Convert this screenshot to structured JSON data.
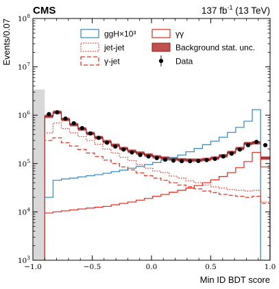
{
  "header": {
    "experiment": "CMS",
    "lumi_value": "137 fb",
    "lumi_exponent": "-1",
    "lumi_energy": " (13 TeV)"
  },
  "chart_data": {
    "type": "histogram",
    "xlabel": "Min ID BDT score",
    "ylabel": "Events/0.07",
    "xlim": [
      -1.0,
      1.0
    ],
    "ylim": [
      1000,
      100000000
    ],
    "yscale": "log",
    "grid": false,
    "legend_position": "top",
    "x_ticks": [
      {
        "value": -1.0,
        "label": "−1.0"
      },
      {
        "value": -0.5,
        "label": "−0.5"
      },
      {
        "value": 0.0,
        "label": "0.0"
      },
      {
        "value": 0.5,
        "label": "0.5"
      },
      {
        "value": 1.0,
        "label": "1.0"
      }
    ],
    "y_ticks": [
      {
        "value": 1000,
        "base": "10",
        "exp": "3"
      },
      {
        "value": 10000,
        "base": "10",
        "exp": "4"
      },
      {
        "value": 100000,
        "base": "10",
        "exp": "5"
      },
      {
        "value": 1000000,
        "base": "10",
        "exp": "6"
      },
      {
        "value": 10000000,
        "base": "10",
        "exp": "7"
      },
      {
        "value": 100000000,
        "base": "10",
        "exp": "8"
      }
    ],
    "excluded_region": {
      "x": [
        -1.0,
        -0.9
      ],
      "color": "#d8d8d8"
    },
    "bin_edges": [
      -0.9,
      -0.83,
      -0.76,
      -0.69,
      -0.62,
      -0.55,
      -0.48,
      -0.41,
      -0.34,
      -0.27,
      -0.2,
      -0.13,
      -0.06,
      0.01,
      0.08,
      0.15,
      0.22,
      0.29,
      0.36,
      0.43,
      0.5,
      0.57,
      0.64,
      0.71,
      0.78,
      0.85,
      0.92,
      1.0
    ],
    "series": [
      {
        "name": "ggH×10³",
        "style": "step",
        "color": "#3c8fbf",
        "values": [
          20000,
          45000,
          48000,
          50000,
          53000,
          56000,
          59000,
          63000,
          68000,
          73000,
          80000,
          87000,
          95000,
          105000,
          118000,
          133000,
          150000,
          175000,
          205000,
          245000,
          290000,
          350000,
          440000,
          560000,
          750000,
          1300000,
          1000
        ]
      },
      {
        "name": "jet-jet",
        "style": "dotted-step",
        "color": "#e8332a",
        "values": [
          430000,
          690000,
          530000,
          430000,
          360000,
          300000,
          250000,
          200000,
          165000,
          135000,
          115000,
          95000,
          80000,
          70000,
          65000,
          55000,
          50000,
          44000,
          40000,
          36000,
          33000,
          31000,
          29000,
          28000,
          27000,
          28000,
          16000
        ]
      },
      {
        "name": "γ-jet",
        "style": "dashed-step",
        "color": "#e8332a",
        "values": [
          300000,
          340000,
          270000,
          230000,
          195000,
          165000,
          140000,
          118000,
          100000,
          85000,
          74000,
          64000,
          56000,
          50000,
          45000,
          40000,
          36000,
          33000,
          30000,
          27000,
          25000,
          23000,
          22000,
          21000,
          20000,
          21000,
          15000
        ]
      },
      {
        "name": "γγ",
        "style": "step",
        "color": "#e8332a",
        "values": [
          9500,
          10000,
          10500,
          11000,
          11500,
          12000,
          12500,
          13000,
          14000,
          15000,
          16000,
          17500,
          19000,
          21000,
          23000,
          25500,
          28000,
          31000,
          35000,
          40000,
          46000,
          54000,
          65000,
          82000,
          110000,
          170000,
          85000
        ]
      },
      {
        "name": "Background stat. unc.",
        "style": "band",
        "color": "#c0504d",
        "edge_color": "#8b1a1a",
        "relative_error": 0.08,
        "values": [
          950000,
          1150000,
          820000,
          640000,
          520000,
          420000,
          345000,
          285000,
          240000,
          205000,
          180000,
          165000,
          150000,
          138000,
          130000,
          125000,
          120000,
          118000,
          118000,
          122000,
          130000,
          145000,
          170000,
          205000,
          260000,
          270000,
          130000
        ]
      },
      {
        "name": "Data",
        "style": "points",
        "color": "#000000",
        "values": [
          1050000,
          1150000,
          850000,
          680000,
          540000,
          420000,
          340000,
          270000,
          225000,
          195000,
          170000,
          150000,
          140000,
          130000,
          120000,
          115000,
          112000,
          112000,
          113000,
          118000,
          125000,
          140000,
          160000,
          195000,
          240000,
          280000,
          240000
        ]
      }
    ],
    "legend": [
      {
        "key": "ggh",
        "label": "ggH×10³"
      },
      {
        "key": "jetjet",
        "label": "jet-jet"
      },
      {
        "key": "gammajet",
        "label": "γ-jet"
      },
      {
        "key": "gammagamma",
        "label": "γγ"
      },
      {
        "key": "unc",
        "label": "Background stat. unc."
      },
      {
        "key": "data",
        "label": "Data"
      }
    ]
  }
}
